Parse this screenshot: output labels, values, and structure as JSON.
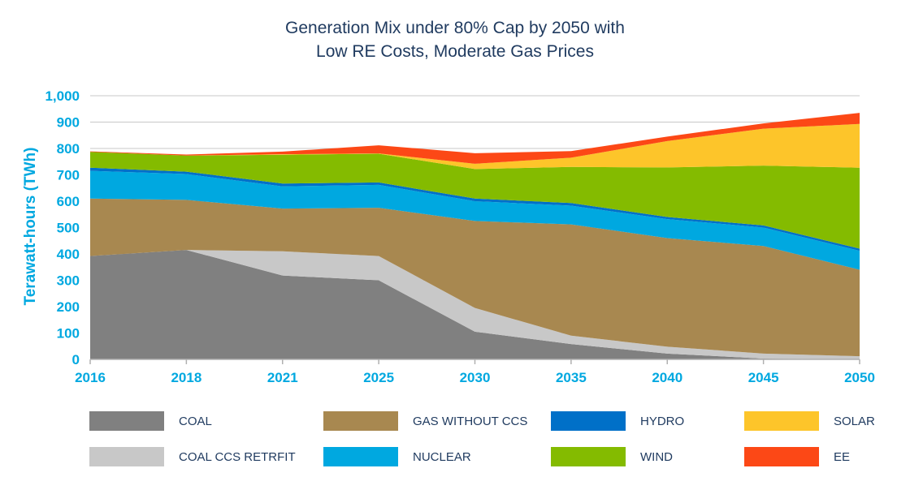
{
  "chart_data": {
    "type": "area",
    "stacked": true,
    "title_lines": [
      "Generation Mix under 80% Cap by 2050 with",
      "Low RE Costs, Moderate Gas Prices"
    ],
    "xlabel": "",
    "ylabel": "Terawatt-hours (TWh)",
    "ylim": [
      0,
      1000
    ],
    "yticks": [
      0,
      100,
      200,
      300,
      400,
      500,
      600,
      700,
      800,
      900,
      1000
    ],
    "ytick_labels": [
      "0",
      "100",
      "200",
      "300",
      "400",
      "500",
      "600",
      "700",
      "800",
      "900",
      "1,000"
    ],
    "categories": [
      "2016",
      "2018",
      "2021",
      "2025",
      "2030",
      "2035",
      "2040",
      "2045",
      "2050"
    ],
    "grid": true,
    "legend_position": "bottom",
    "series": [
      {
        "name": "COAL",
        "color": "#808080",
        "values": [
          392,
          415,
          318,
          300,
          105,
          58,
          22,
          3,
          0
        ]
      },
      {
        "name": "COAL CCS RETRFIT",
        "color": "#c8c8c8",
        "values": [
          0,
          0,
          92,
          92,
          90,
          32,
          26,
          19,
          12
        ]
      },
      {
        "name": "GAS WITHOUT CCS",
        "color": "#a88850",
        "values": [
          218,
          190,
          162,
          183,
          330,
          422,
          412,
          408,
          328
        ]
      },
      {
        "name": "NUCLEAR",
        "color": "#00a8e0",
        "values": [
          105,
          98,
          84,
          87,
          75,
          71,
          72,
          70,
          72
        ]
      },
      {
        "name": "HYDRO",
        "color": "#0070c8",
        "values": [
          12,
          9,
          11,
          9,
          10,
          10,
          8,
          8,
          8
        ]
      },
      {
        "name": "WIND",
        "color": "#84bb00",
        "values": [
          60,
          61,
          109,
          109,
          112,
          137,
          188,
          227,
          307
        ]
      },
      {
        "name": "SOLAR",
        "color": "#fdc52a",
        "values": [
          0,
          0,
          2,
          1,
          20,
          35,
          100,
          140,
          166
        ]
      },
      {
        "name": "EE",
        "color": "#fc4816",
        "values": [
          2,
          4,
          10,
          31,
          40,
          25,
          17,
          20,
          42
        ]
      }
    ],
    "legend_order": [
      "COAL",
      "GAS WITHOUT CCS",
      "HYDRO",
      "SOLAR",
      "COAL CCS RETRFIT",
      "NUCLEAR",
      "WIND",
      "EE"
    ]
  }
}
